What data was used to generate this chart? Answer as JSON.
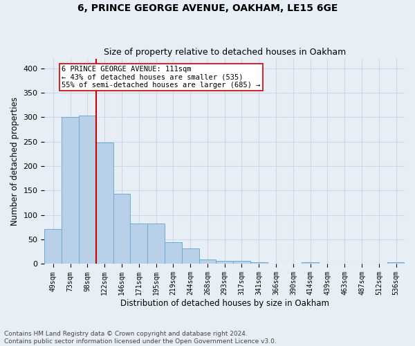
{
  "title1": "6, PRINCE GEORGE AVENUE, OAKHAM, LE15 6GE",
  "title2": "Size of property relative to detached houses in Oakham",
  "xlabel": "Distribution of detached houses by size in Oakham",
  "ylabel": "Number of detached properties",
  "categories": [
    "49sqm",
    "73sqm",
    "98sqm",
    "122sqm",
    "146sqm",
    "171sqm",
    "195sqm",
    "219sqm",
    "244sqm",
    "268sqm",
    "293sqm",
    "317sqm",
    "341sqm",
    "366sqm",
    "390sqm",
    "414sqm",
    "439sqm",
    "463sqm",
    "487sqm",
    "512sqm",
    "536sqm"
  ],
  "values": [
    72,
    300,
    304,
    248,
    144,
    83,
    83,
    45,
    32,
    9,
    6,
    6,
    3,
    0,
    0,
    4,
    0,
    0,
    0,
    0,
    4
  ],
  "bar_color": "#b8d0e8",
  "bar_edge_color": "#6aaad4",
  "vline_x_index": 2,
  "vline_color": "#cc0000",
  "annotation_text": "6 PRINCE GEORGE AVENUE: 111sqm\n← 43% of detached houses are smaller (535)\n55% of semi-detached houses are larger (685) →",
  "annotation_box_color": "#ffffff",
  "annotation_box_edge_color": "#cc0000",
  "ylim": [
    0,
    420
  ],
  "yticks": [
    0,
    50,
    100,
    150,
    200,
    250,
    300,
    350,
    400
  ],
  "footnote": "Contains HM Land Registry data © Crown copyright and database right 2024.\nContains public sector information licensed under the Open Government Licence v3.0.",
  "background_color": "#e8eef5",
  "grid_color": "#d0d8e8",
  "title1_fontsize": 10,
  "title2_fontsize": 9,
  "xlabel_fontsize": 8.5,
  "ylabel_fontsize": 8.5,
  "annotation_fontsize": 7.5,
  "footnote_fontsize": 6.5
}
